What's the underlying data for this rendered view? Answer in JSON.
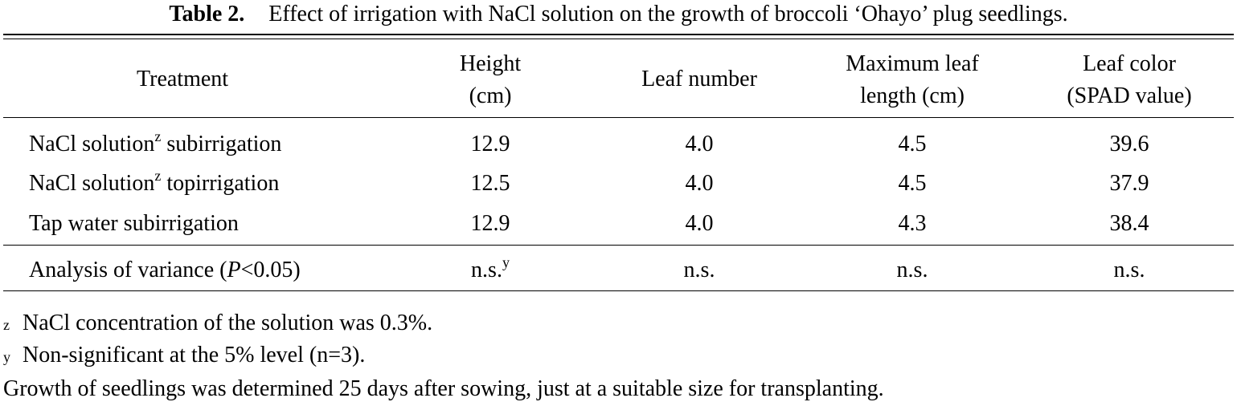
{
  "caption": {
    "label": "Table  2.",
    "text": "Effect of irrigation with NaCl solution on the growth of broccoli ‘Ohayo’ plug seedlings."
  },
  "headers": {
    "treatment": "Treatment",
    "height_l1": "Height",
    "height_l2": "(cm)",
    "leaf_number": "Leaf number",
    "max_leaf_l1": "Maximum leaf",
    "max_leaf_l2": "length (cm)",
    "leaf_color_l1": "Leaf color",
    "leaf_color_l2": "(SPAD value)"
  },
  "rows": [
    {
      "treatment": "NaCl solution",
      "mark": "z",
      "treatment_suffix": " subirrigation",
      "height": "12.9",
      "leaf_number": "4.0",
      "max_leaf": "4.5",
      "leaf_color": "39.6"
    },
    {
      "treatment": "NaCl solution",
      "mark": "z",
      "treatment_suffix": " topirrigation",
      "height": "12.5",
      "leaf_number": "4.0",
      "max_leaf": "4.5",
      "leaf_color": "37.9"
    },
    {
      "treatment": "Tap water subirrigation",
      "mark": "",
      "treatment_suffix": "",
      "height": "12.9",
      "leaf_number": "4.0",
      "max_leaf": "4.3",
      "leaf_color": "38.4"
    }
  ],
  "anova": {
    "label_prefix": "Analysis of variance (",
    "label_p": "P",
    "label_suffix": "<0.05)",
    "height": "n.s.",
    "height_mark": "y",
    "leaf_number": "n.s.",
    "max_leaf": "n.s.",
    "leaf_color": "n.s."
  },
  "notes": [
    {
      "mark": "z",
      "text": "NaCl concentration of the solution was 0.3%."
    },
    {
      "mark": "y",
      "text": "Non-significant at the 5% level (n=3)."
    },
    {
      "mark": "",
      "text": "Growth of seedlings was determined 25 days after sowing, just at a suitable size for transplanting."
    }
  ]
}
